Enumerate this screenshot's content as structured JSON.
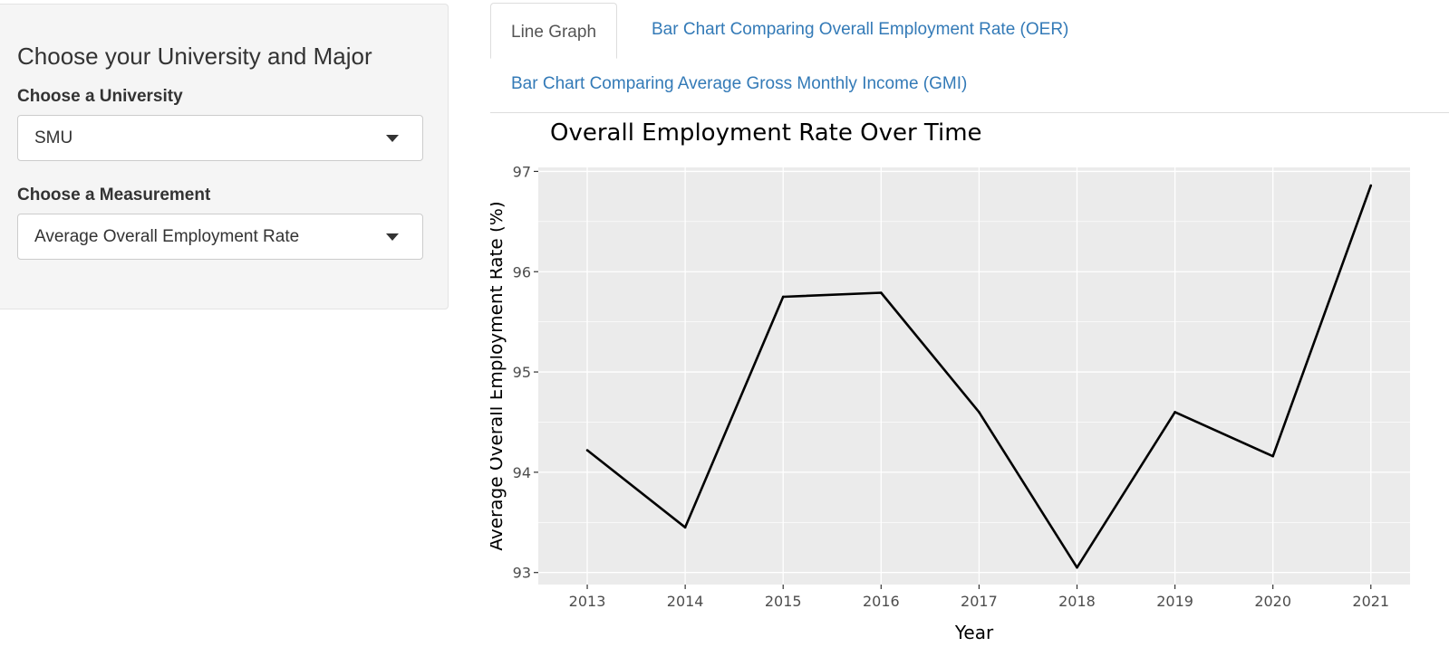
{
  "sidebar": {
    "title": "Choose your University and Major",
    "university_label": "Choose a University",
    "university_value": "SMU",
    "measurement_label": "Choose a Measurement",
    "measurement_value": "Average Overall Employment Rate"
  },
  "tabs": [
    {
      "label": "Line Graph",
      "active": true
    },
    {
      "label": "Bar Chart Comparing Overall Employment Rate (OER)",
      "active": false
    },
    {
      "label": "Bar Chart Comparing Average Gross Monthly Income (GMI)",
      "active": false
    }
  ],
  "colors": {
    "panel_bg": "#ebebeb",
    "grid": "#ffffff",
    "line": "#000000",
    "link": "#337ab7"
  },
  "chart_data": {
    "type": "line",
    "title": "Overall Employment Rate Over Time",
    "xlabel": "Year",
    "ylabel": "Average Overall Employment Rate (%)",
    "x": [
      2013,
      2014,
      2015,
      2016,
      2017,
      2018,
      2019,
      2020,
      2021
    ],
    "values": [
      94.22,
      93.45,
      95.75,
      95.79,
      94.6,
      93.05,
      94.6,
      94.16,
      96.86
    ],
    "xlim": [
      2012.5,
      2021.4
    ],
    "ylim": [
      92.88,
      97.04
    ],
    "yticks": [
      93,
      94,
      95,
      96,
      97
    ],
    "xticks": [
      2013,
      2014,
      2015,
      2016,
      2017,
      2018,
      2019,
      2020,
      2021
    ],
    "grid": true,
    "legend": "none"
  }
}
